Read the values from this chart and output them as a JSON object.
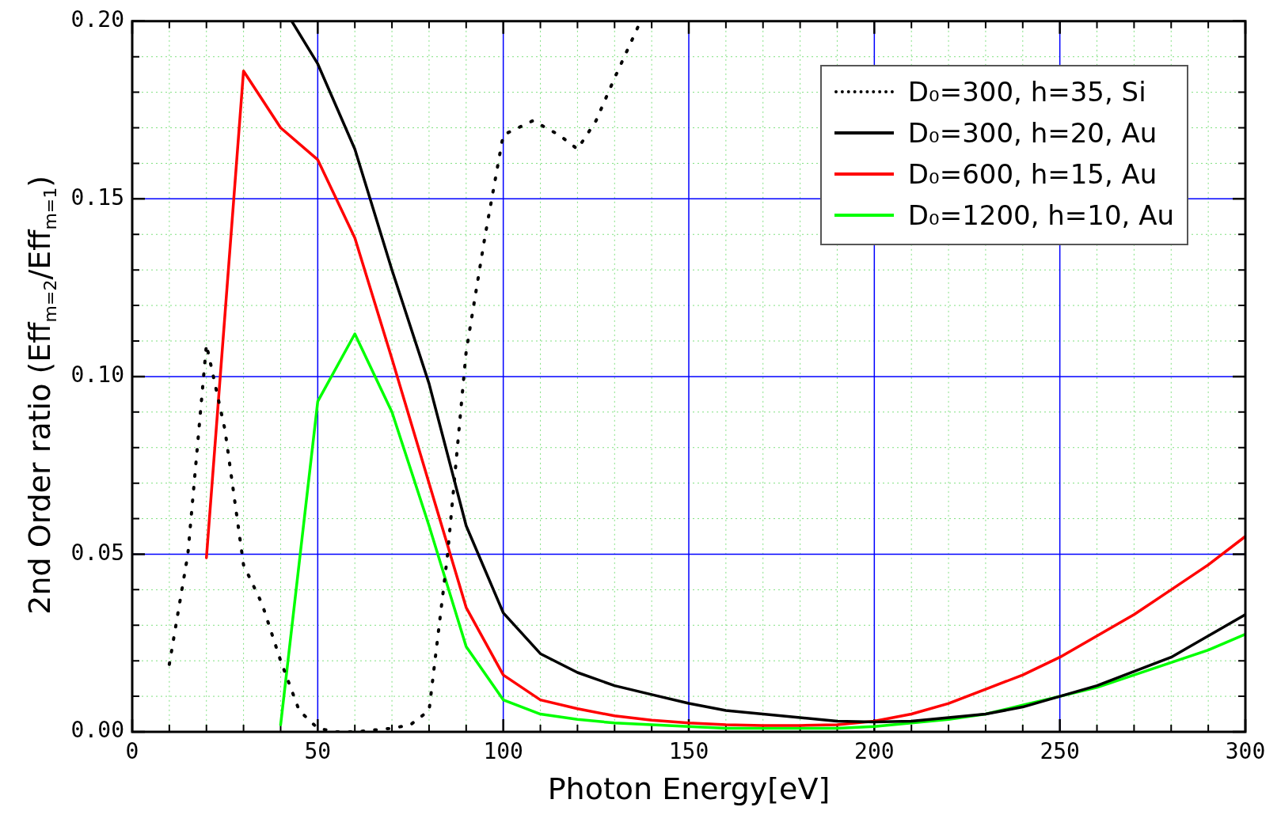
{
  "chart_data": {
    "type": "line",
    "xlabel": "Photon Energy[eV]",
    "ylabel": "2nd Order ratio (Eff$_{m=2}$/Eff$_{m=1}$)",
    "xlim": [
      0,
      300
    ],
    "xticks": [
      0,
      {
        "value": 10,
        "label": null
      },
      {
        "value": 20,
        "label": null
      },
      {
        "value": 30,
        "label": null
      },
      {
        "value": 40,
        "label": null
      },
      50,
      {
        "value": 60,
        "label": null
      },
      {
        "value": 70,
        "label": null
      },
      {
        "value": 80,
        "label": null
      },
      {
        "value": 90,
        "label": null
      },
      100,
      {
        "value": 110,
        "label": null
      },
      {
        "value": 120,
        "label": null
      },
      {
        "value": 130,
        "label": null
      },
      {
        "value": 140,
        "label": null
      },
      150,
      {
        "value": 160,
        "label": null
      },
      {
        "value": 170,
        "label": null
      },
      {
        "value": 180,
        "label": null
      },
      {
        "value": 190,
        "label": null
      },
      200,
      {
        "value": 210,
        "label": null
      },
      {
        "value": 220,
        "label": null
      },
      {
        "value": 230,
        "label": null
      },
      {
        "value": 240,
        "label": null
      },
      250,
      {
        "value": 260,
        "label": null
      },
      {
        "value": 270,
        "label": null
      },
      {
        "value": 280,
        "label": null
      },
      {
        "value": 290,
        "label": null
      },
      300
    ],
    "ylim": [
      0,
      0.2
    ],
    "yticks": [
      {
        "value": 0,
        "label": "0.00"
      },
      {
        "value": 0.01,
        "label": null
      },
      {
        "value": 0.02,
        "label": null
      },
      {
        "value": 0.03,
        "label": null
      },
      {
        "value": 0.04,
        "label": null
      },
      {
        "value": 0.05,
        "label": "0.05"
      },
      {
        "value": 0.06,
        "label": null
      },
      {
        "value": 0.07,
        "label": null
      },
      {
        "value": 0.08,
        "label": null
      },
      {
        "value": 0.09,
        "label": null
      },
      {
        "value": 0.1,
        "label": "0.10"
      },
      {
        "value": 0.11,
        "label": null
      },
      {
        "value": 0.12,
        "label": null
      },
      {
        "value": 0.13,
        "label": null
      },
      {
        "value": 0.14,
        "label": null
      },
      {
        "value": 0.15,
        "label": "0.15"
      },
      {
        "value": 0.16,
        "label": null
      },
      {
        "value": 0.17,
        "label": null
      },
      {
        "value": 0.18,
        "label": null
      },
      {
        "value": 0.19,
        "label": null
      },
      {
        "value": 0.2,
        "label": "0.20"
      }
    ],
    "grid": true,
    "legend": "top right",
    "marker": "none",
    "line_style": "solid",
    "series": [
      {
        "name": "D₀=300, h=35, Si",
        "color": "#000000",
        "line_style": "dotted",
        "x": [
          10,
          15,
          20,
          25,
          30,
          35,
          40,
          45,
          50,
          55,
          60,
          70,
          75,
          80,
          85,
          90,
          95,
          100,
          108,
          115,
          120,
          125,
          130,
          137
        ],
        "values": [
          0.019,
          0.05,
          0.109,
          0.085,
          0.047,
          0.036,
          0.02,
          0.006,
          0.001,
          0,
          0,
          0.001,
          0.002,
          0.006,
          0.05,
          0.107,
          0.139,
          0.168,
          0.172,
          0.168,
          0.164,
          0.172,
          0.184,
          0.2
        ]
      },
      {
        "name": "D₀=300, h=20, Au",
        "color": "#000000",
        "x": [
          43,
          50,
          60,
          70,
          80,
          90,
          100,
          110,
          120,
          130,
          140,
          150,
          160,
          170,
          180,
          190,
          200,
          210,
          220,
          230,
          240,
          250,
          260,
          270,
          280,
          290,
          300
        ],
        "values": [
          0.2,
          0.188,
          0.164,
          0.13,
          0.098,
          0.058,
          0.0335,
          0.022,
          0.0167,
          0.013,
          0.0105,
          0.008,
          0.006,
          0.005,
          0.004,
          0.003,
          0.0028,
          0.003,
          0.004,
          0.005,
          0.007,
          0.01,
          0.013,
          0.017,
          0.021,
          0.027,
          0.033
        ]
      },
      {
        "name": "D₀=600, h=15, Au",
        "color": "#ff0000",
        "x": [
          20,
          30,
          40,
          50,
          60,
          70,
          80,
          90,
          100,
          110,
          120,
          130,
          140,
          150,
          160,
          170,
          180,
          190,
          200,
          210,
          220,
          230,
          240,
          250,
          260,
          270,
          280,
          290,
          300
        ],
        "values": [
          0.049,
          0.186,
          0.17,
          0.161,
          0.139,
          0.105,
          0.07,
          0.035,
          0.016,
          0.009,
          0.0065,
          0.0045,
          0.0033,
          0.0025,
          0.002,
          0.0018,
          0.0018,
          0.002,
          0.003,
          0.005,
          0.008,
          0.012,
          0.016,
          0.021,
          0.027,
          0.033,
          0.04,
          0.047,
          0.055
        ]
      },
      {
        "name": "D₀=1200, h=10, Au",
        "color": "#00ff00",
        "x": [
          40,
          50,
          60,
          70,
          80,
          90,
          100,
          110,
          120,
          130,
          140,
          150,
          160,
          170,
          180,
          190,
          200,
          210,
          220,
          230,
          240,
          250,
          260,
          270,
          280,
          290,
          300
        ],
        "values": [
          0.002,
          0.093,
          0.112,
          0.09,
          0.058,
          0.024,
          0.009,
          0.005,
          0.0035,
          0.0025,
          0.002,
          0.0015,
          0.001,
          0.001,
          0.001,
          0.001,
          0.0015,
          0.0025,
          0.0035,
          0.005,
          0.0075,
          0.01,
          0.0125,
          0.016,
          0.0195,
          0.023,
          0.0275
        ]
      }
    ]
  }
}
